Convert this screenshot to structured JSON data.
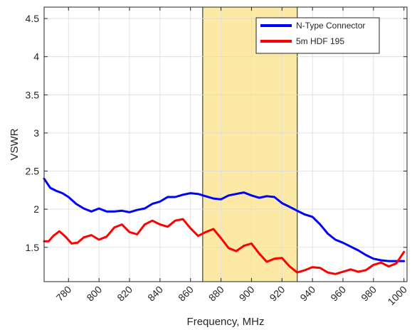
{
  "chart_data": {
    "type": "line",
    "title": "",
    "xlabel": "Frequency, MHz",
    "ylabel": "VSWR",
    "xlim": [
      764,
      1002
    ],
    "ylim": [
      1.05,
      4.65
    ],
    "x_ticks": [
      780,
      800,
      820,
      840,
      860,
      880,
      900,
      920,
      940,
      960,
      980,
      1000
    ],
    "y_ticks": [
      1.5,
      2,
      2.5,
      3,
      3.5,
      4,
      4.5
    ],
    "x_tick_labels": [
      "780",
      "800",
      "820",
      "840",
      "860",
      "880",
      "900",
      "920",
      "940",
      "960",
      "980",
      "1000"
    ],
    "y_tick_labels": [
      "1.5",
      "2",
      "2.5",
      "3",
      "3.5",
      "4",
      "4.5"
    ],
    "grid": true,
    "legend_position": "top-right",
    "highlight_band": {
      "x": [
        868,
        930
      ],
      "color": "#fde9a6",
      "edge_color": "#404040"
    },
    "series": [
      {
        "name": "N-Type Connector",
        "color": "#0000ff",
        "x": [
          764,
          768,
          772,
          776,
          780,
          785,
          790,
          795,
          800,
          805,
          810,
          815,
          820,
          825,
          830,
          835,
          840,
          845,
          850,
          855,
          860,
          865,
          870,
          875,
          880,
          885,
          890,
          895,
          900,
          905,
          910,
          915,
          920,
          925,
          930,
          935,
          940,
          945,
          950,
          955,
          960,
          965,
          970,
          975,
          980,
          985,
          990,
          995,
          1000
        ],
        "y": [
          2.4,
          2.28,
          2.24,
          2.21,
          2.16,
          2.07,
          2.01,
          1.97,
          2.01,
          1.97,
          1.97,
          1.98,
          1.96,
          1.99,
          2.01,
          2.07,
          2.1,
          2.16,
          2.16,
          2.19,
          2.21,
          2.2,
          2.17,
          2.14,
          2.13,
          2.18,
          2.2,
          2.22,
          2.18,
          2.15,
          2.17,
          2.16,
          2.08,
          2.03,
          1.98,
          1.93,
          1.9,
          1.8,
          1.68,
          1.6,
          1.56,
          1.51,
          1.46,
          1.4,
          1.35,
          1.33,
          1.32,
          1.32,
          1.32
        ]
      },
      {
        "name": "5m HDF 195",
        "color": "#ff0000",
        "x": [
          764,
          767,
          770,
          774,
          778,
          782,
          786,
          790,
          795,
          800,
          805,
          810,
          815,
          820,
          825,
          830,
          835,
          840,
          845,
          850,
          855,
          860,
          865,
          870,
          875,
          880,
          885,
          890,
          895,
          900,
          905,
          910,
          915,
          920,
          925,
          930,
          935,
          940,
          945,
          950,
          955,
          960,
          965,
          970,
          975,
          980,
          985,
          990,
          995,
          1000
        ],
        "y": [
          1.58,
          1.58,
          1.65,
          1.71,
          1.64,
          1.55,
          1.56,
          1.63,
          1.66,
          1.6,
          1.64,
          1.76,
          1.8,
          1.7,
          1.67,
          1.8,
          1.85,
          1.8,
          1.77,
          1.85,
          1.87,
          1.75,
          1.65,
          1.7,
          1.74,
          1.62,
          1.49,
          1.45,
          1.52,
          1.55,
          1.42,
          1.31,
          1.35,
          1.36,
          1.25,
          1.17,
          1.2,
          1.24,
          1.23,
          1.17,
          1.15,
          1.18,
          1.21,
          1.18,
          1.2,
          1.27,
          1.3,
          1.25,
          1.29,
          1.44
        ]
      }
    ]
  }
}
